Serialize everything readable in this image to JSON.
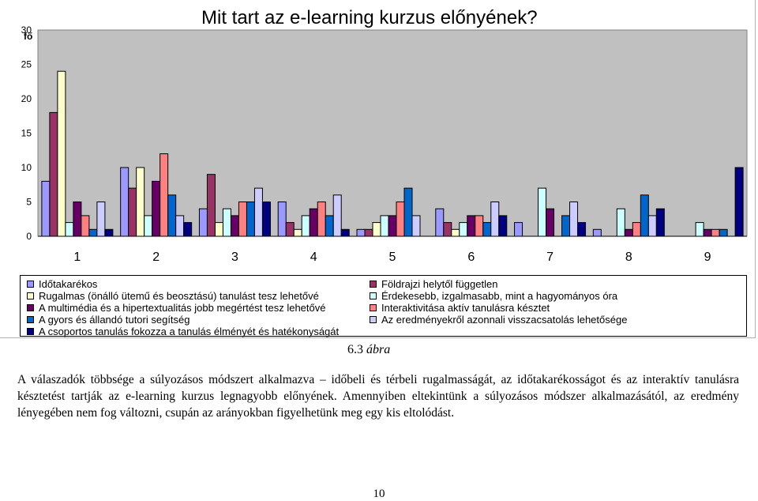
{
  "chart_data": {
    "type": "bar",
    "title": "Mit tart az e-learning kurzus előnyének?",
    "ylabel": "fő",
    "ylim": [
      0,
      30
    ],
    "yticks": [
      0,
      5,
      10,
      15,
      20,
      25,
      30
    ],
    "categories": [
      "1",
      "2",
      "3",
      "4",
      "5",
      "6",
      "7",
      "8",
      "9"
    ],
    "plot_background": "#c0c0c0",
    "grid": false,
    "legend_position": "bottom",
    "series": [
      {
        "name": "Időtakarékos",
        "color": "#9999ff",
        "values": [
          8,
          10,
          4,
          5,
          1,
          4,
          2,
          1,
          0
        ]
      },
      {
        "name": "Földrajzi helytől független",
        "color": "#993366",
        "values": [
          18,
          7,
          9,
          2,
          1,
          2,
          0,
          0,
          0
        ]
      },
      {
        "name": "Rugalmas (önálló ütemű és beosztású) tanulást tesz lehetővé",
        "color": "#ffffcc",
        "values": [
          24,
          10,
          2,
          1,
          2,
          1,
          0,
          0,
          0
        ]
      },
      {
        "name": "Érdekesebb, izgalmasabb, mint a hagyományos óra",
        "color": "#ccffff",
        "values": [
          2,
          3,
          4,
          3,
          3,
          2,
          7,
          4,
          2
        ]
      },
      {
        "name": "A multimédia és a hipertextualitás jobb megértést tesz lehetővé",
        "color": "#660066",
        "values": [
          5,
          8,
          3,
          4,
          3,
          3,
          4,
          1,
          1
        ]
      },
      {
        "name": "Interaktivitása aktív tanulásra késztet",
        "color": "#ff8080",
        "values": [
          3,
          12,
          5,
          5,
          5,
          3,
          0,
          2,
          1
        ]
      },
      {
        "name": "A gyors és állandó tutori segítség",
        "color": "#0066cc",
        "values": [
          1,
          6,
          5,
          3,
          7,
          2,
          3,
          6,
          1
        ]
      },
      {
        "name": "Az eredményekről azonnali visszacsatolás lehetősége",
        "color": "#ccccff",
        "values": [
          5,
          3,
          7,
          6,
          3,
          5,
          5,
          3,
          0
        ]
      },
      {
        "name": "A csoportos tanulás fokozza a tanulás élményét és hatékonyságát",
        "color": "#000080",
        "values": [
          1,
          2,
          5,
          1,
          0,
          3,
          2,
          4,
          10
        ]
      }
    ]
  },
  "legend_left": [
    "Időtakarékos",
    "Rugalmas (önálló ütemű és beosztású) tanulást tesz lehetővé",
    "A multimédia és a hipertextualitás jobb megértést tesz lehetővé",
    "A gyors és állandó tutori segítség",
    "A csoportos tanulás fokozza a tanulás élményét és hatékonyságát"
  ],
  "legend_right": [
    "Földrajzi helytől független",
    "Érdekesebb, izgalmasabb, mint a hagyományos óra",
    "Interaktivitása aktív tanulásra késztet",
    "Az eredményekről azonnali visszacsatolás lehetősége"
  ],
  "caption": {
    "number": "6.3",
    "label": "ábra"
  },
  "paragraph": "A válaszadók többsége a súlyozásos módszert alkalmazva – időbeli és térbeli rugalmasságát, az időtakarékosságot és az interaktív tanulásra késztetést tartják az e-learning kurzus legnagyobb előnyének. Amennyiben eltekintünk a súlyozásos módszer alkalmazásától, az eredmény lényegében nem fog változni, csupán az arányokban figyelhetünk meg egy kis eltolódást.",
  "page_number": "10"
}
